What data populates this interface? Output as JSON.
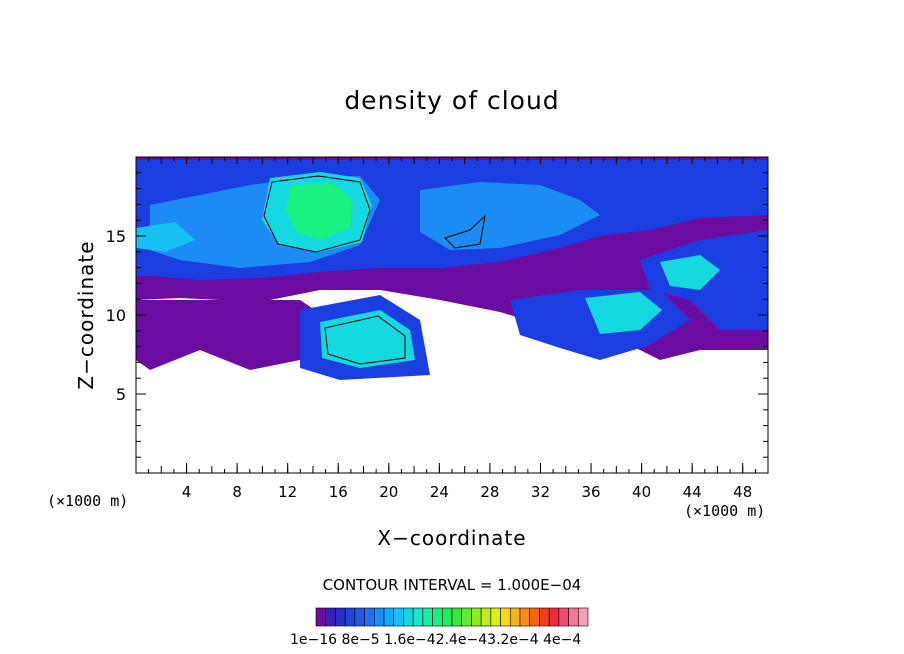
{
  "chart_data": {
    "type": "heatmap",
    "title": "density of cloud",
    "xlabel": "X−coordinate",
    "ylabel": "Z−coordinate",
    "x_unit": "(×1000 m)",
    "y_unit": "(×1000 m)",
    "xlim": [
      0,
      50
    ],
    "ylim": [
      0,
      20
    ],
    "x_ticks": [
      4,
      8,
      12,
      16,
      20,
      24,
      28,
      32,
      36,
      40,
      44,
      48
    ],
    "y_ticks": [
      5,
      10,
      15
    ],
    "contour_interval": "CONTOUR INTERVAL = 1.000E−04",
    "colorbar": {
      "labels_text": "1e−16 8e−5 1.6e−42.4e−43.2e−4 4e−4",
      "colors": [
        "#6a0c9f",
        "#3a1fb0",
        "#2a2fc8",
        "#2244d8",
        "#1f5ae6",
        "#1c72ef",
        "#1a8cf4",
        "#18a6f6",
        "#16c0f2",
        "#16d8e0",
        "#18e8c2",
        "#1aeea2",
        "#1cf080",
        "#22ec5c",
        "#3ee63c",
        "#66e82e",
        "#92ec24",
        "#bcee1e",
        "#e0ee18",
        "#f6d816",
        "#f8b414",
        "#f88c14",
        "#f86414",
        "#f44020",
        "#f02c3c",
        "#f04c6e",
        "#f07898",
        "#f4a0b0"
      ]
    }
  }
}
